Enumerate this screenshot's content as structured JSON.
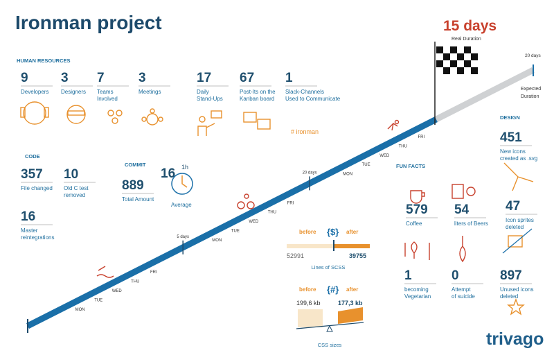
{
  "title": "Ironman project",
  "real": {
    "value": "15 days",
    "label": "Real Duration"
  },
  "expected": {
    "value": "20 days",
    "label": [
      "Expected",
      "Duration"
    ]
  },
  "human_resources": {
    "heading": "HUMAN RESOURCES",
    "stats": [
      {
        "value": 9,
        "label": [
          "Developers"
        ]
      },
      {
        "value": 3,
        "label": [
          "Designers"
        ]
      },
      {
        "value": 7,
        "label": [
          "Teams",
          "Involved"
        ]
      },
      {
        "value": 3,
        "label": [
          "Meetings"
        ]
      },
      {
        "value": 17,
        "label": [
          "Daily",
          "Stand-Ups"
        ]
      },
      {
        "value": 67,
        "label": [
          "Post-Its on the",
          "Kanban board"
        ]
      },
      {
        "value": 1,
        "label": [
          "Slack-Channels",
          "Used to Communicate"
        ]
      }
    ],
    "hashtag": "# ironman"
  },
  "code": {
    "heading": "CODE",
    "stats": [
      {
        "value": 357,
        "label": [
          "File changed"
        ]
      },
      {
        "value": 10,
        "label": [
          "Old C test",
          "removed"
        ]
      },
      {
        "value": 16,
        "label": [
          "Master",
          "reintegrations"
        ]
      }
    ]
  },
  "commit": {
    "heading": "COMMIT",
    "total": {
      "value": 889,
      "label": "Total Amount"
    },
    "average": {
      "value": 16,
      "unit": "1h",
      "label": "Average"
    }
  },
  "timeline": {
    "weeks": [
      [
        "MON",
        "TUE",
        "WED",
        "THU",
        "FRI"
      ],
      [
        "MON",
        "TUE",
        "WED",
        "THU",
        "FRI"
      ],
      [
        "MON",
        "TUE",
        "WED",
        "THU",
        "FRI"
      ]
    ],
    "markers": [
      "5 days",
      "20 days"
    ]
  },
  "fun_facts": {
    "heading": "FUN FACTS",
    "stats": [
      {
        "value": 579,
        "label": [
          "Coffee"
        ]
      },
      {
        "value": 54,
        "label": [
          "liters of Beers"
        ]
      },
      {
        "value": 1,
        "label": [
          "becoming",
          "Vegetarian"
        ]
      },
      {
        "value": 0,
        "label": [
          "Attempt",
          "of suicide"
        ]
      }
    ]
  },
  "design": {
    "heading": "DESIGN",
    "stats": [
      {
        "value": 451,
        "label": [
          "New icons",
          "created as .svg"
        ]
      },
      {
        "value": 47,
        "label": [
          "Icon sprites",
          "deleted"
        ]
      },
      {
        "value": 897,
        "label": [
          "Unused icons",
          "deleted"
        ]
      }
    ]
  },
  "scss": {
    "before_label": "before",
    "symbol": "{$}",
    "after_label": "after",
    "before": 52991,
    "after": 39755,
    "caption": "Lines of SCSS"
  },
  "css": {
    "before_label": "before",
    "symbol": "{#}",
    "after_label": "after",
    "before": "199,6 kb",
    "after": "177,3 kb",
    "caption": "CSS sizes"
  },
  "logo": "trivago"
}
